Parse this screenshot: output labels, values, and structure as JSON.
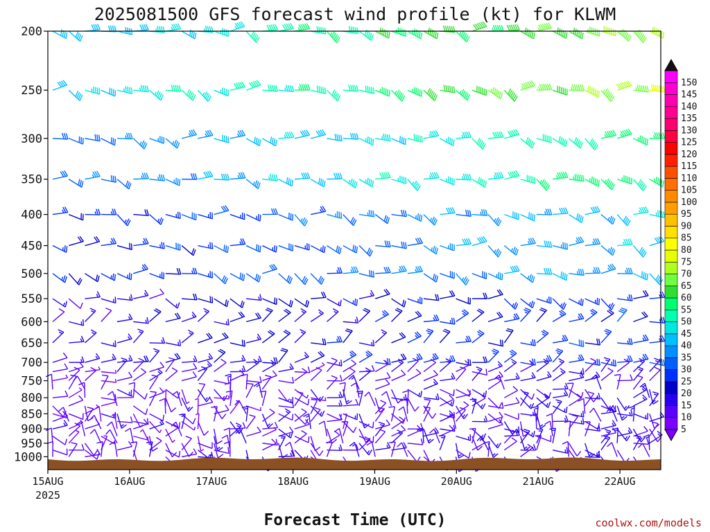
{
  "chart_data": {
    "type": "wind-barb-profile",
    "title": "2025081500 GFS forecast wind profile (kt) for KLWM",
    "xlabel": "Forecast Time (UTC)",
    "x_year_label": "2025",
    "x_ticks": [
      "15AUG",
      "16AUG",
      "17AUG",
      "18AUG",
      "19AUG",
      "20AUG",
      "21AUG",
      "22AUG"
    ],
    "x_range_days": [
      15,
      22.5
    ],
    "y_ticks": [
      200,
      250,
      300,
      350,
      400,
      450,
      500,
      550,
      600,
      650,
      700,
      750,
      800,
      850,
      900,
      950,
      1000
    ],
    "y_range_hpa": [
      200,
      1050
    ],
    "y_scale": "log",
    "colorbar_levels": [
      5,
      10,
      15,
      20,
      25,
      30,
      35,
      40,
      45,
      50,
      55,
      60,
      65,
      70,
      75,
      80,
      85,
      90,
      95,
      100,
      105,
      110,
      115,
      120,
      125,
      130,
      135,
      140,
      145,
      150
    ],
    "colorbar_colors": [
      "#7a00ff",
      "#5a00ff",
      "#2a00f0",
      "#0000c8",
      "#0030ff",
      "#0060ff",
      "#0090ff",
      "#00c0ff",
      "#00e8e0",
      "#00ffb0",
      "#00ff70",
      "#30e030",
      "#70ff40",
      "#b0ff20",
      "#e8ff00",
      "#ffff00",
      "#ffe000",
      "#ffc000",
      "#ffa000",
      "#ff8c00",
      "#ff7000",
      "#ff5000",
      "#ff2000",
      "#ff0000",
      "#ff0040",
      "#ff0070",
      "#ff0090",
      "#ff00b0",
      "#ff00d0",
      "#ff00ff"
    ],
    "terrain_color": "#8b5023"
  },
  "credit": "coolwx.com/models"
}
